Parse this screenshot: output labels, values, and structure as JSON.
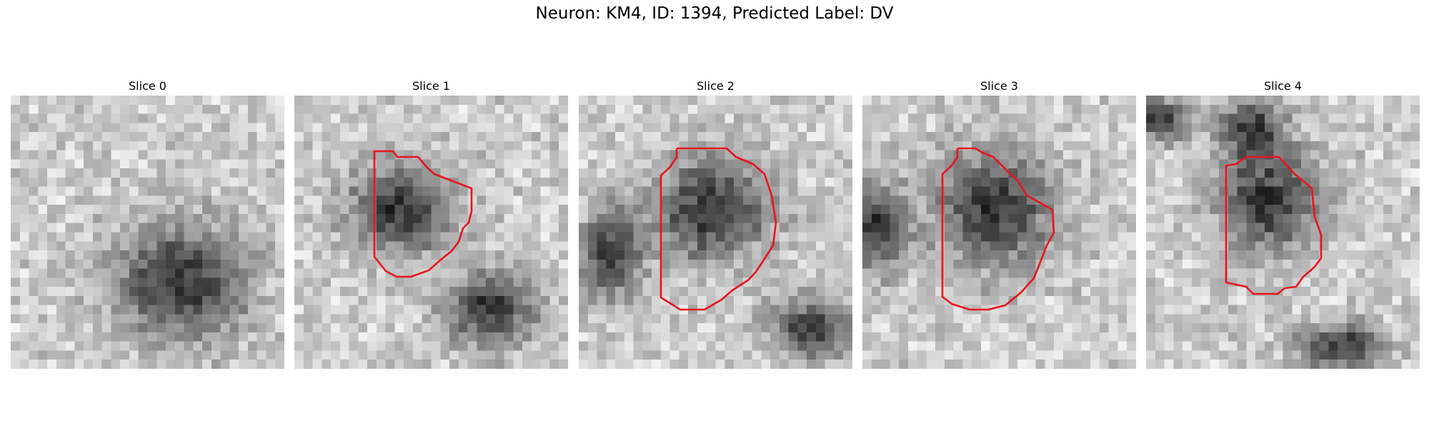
{
  "figure": {
    "title": "Neuron: KM4, ID: 1394, Predicted Label: DV"
  },
  "colors": {
    "contour": "#e8141c",
    "background": "#ffffff"
  },
  "panels": [
    {
      "title": "Slice 0",
      "has_contour": false
    },
    {
      "title": "Slice 1",
      "has_contour": true
    },
    {
      "title": "Slice 2",
      "has_contour": true
    },
    {
      "title": "Slice 3",
      "has_contour": true
    },
    {
      "title": "Slice 4",
      "has_contour": true
    }
  ]
}
